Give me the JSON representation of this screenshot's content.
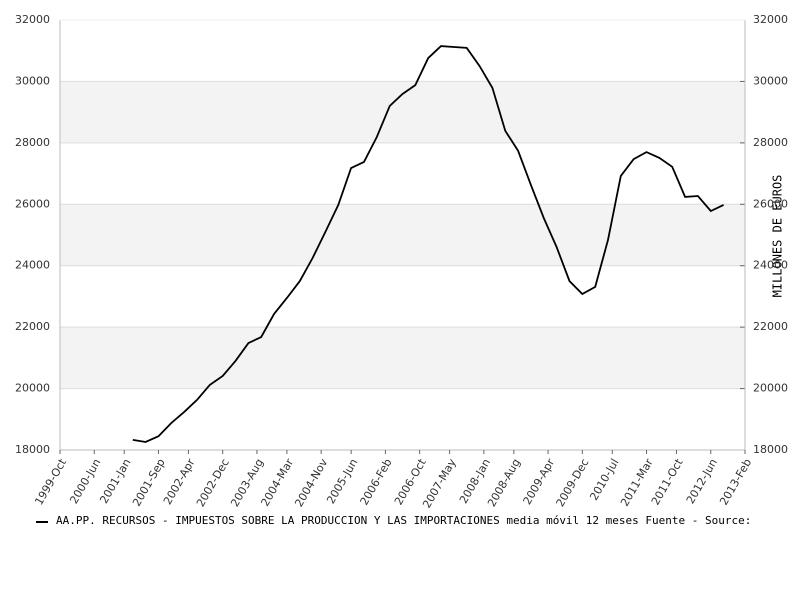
{
  "chart_data": {
    "type": "line",
    "y_axis_label": "MILLONES DE EUROS",
    "legend_text": "AA.PP. RECURSOS - IMPUESTOS SOBRE LA PRODUCCION Y LAS IMPORTACIONES media móvil 12 meses  Fuente - Source:",
    "x": [
      "2001-Mar",
      "2001-Jun",
      "2001-Sep",
      "2001-Dec",
      "2002-Mar",
      "2002-Jun",
      "2002-Sep",
      "2002-Dec",
      "2003-Mar",
      "2003-Jun",
      "2003-Sep",
      "2003-Dec",
      "2004-Mar",
      "2004-Jun",
      "2004-Sep",
      "2004-Dec",
      "2005-Mar",
      "2005-Jun",
      "2005-Sep",
      "2005-Dec",
      "2006-Mar",
      "2006-Jun",
      "2006-Sep",
      "2006-Dec",
      "2007-Mar",
      "2007-Jun",
      "2007-Sep",
      "2007-Dec",
      "2008-Mar",
      "2008-Jun",
      "2008-Sep",
      "2008-Dec",
      "2009-Mar",
      "2009-Jun",
      "2009-Sep",
      "2009-Dec",
      "2010-Mar",
      "2010-Jun",
      "2010-Sep",
      "2010-Dec",
      "2011-Mar",
      "2011-Jun",
      "2011-Sep",
      "2011-Dec",
      "2012-Mar",
      "2012-Jun",
      "2012-Sep"
    ],
    "series": [
      {
        "name": "AA.PP. RECURSOS",
        "color": "#000000",
        "values": [
          18330,
          18260,
          18450,
          18880,
          19240,
          19630,
          20120,
          20410,
          20900,
          21480,
          21680,
          22430,
          22950,
          23500,
          24250,
          25100,
          25980,
          27180,
          27380,
          28190,
          29200,
          29590,
          29880,
          30760,
          31150,
          31120,
          31090,
          30500,
          29790,
          28390,
          27740,
          26630,
          25550,
          24610,
          23500,
          23080,
          23310,
          24840,
          26920,
          27470,
          27700,
          27510,
          27220,
          26240,
          26270,
          25780,
          25980
        ]
      }
    ],
    "xlim": [
      "1999-Oct",
      "2013-Feb"
    ],
    "xticks": [
      "1999-Oct",
      "2000-Jun",
      "2001-Jan",
      "2001-Sep",
      "2002-Apr",
      "2002-Dec",
      "2003-Aug",
      "2004-Mar",
      "2004-Nov",
      "2005-Jun",
      "2006-Feb",
      "2006-Oct",
      "2007-May",
      "2008-Jan",
      "2008-Aug",
      "2009-Apr",
      "2009-Dec",
      "2010-Jul",
      "2011-Mar",
      "2011-Oct",
      "2012-Jun",
      "2013-Feb"
    ],
    "ylim": [
      18000,
      32000
    ],
    "yticks": [
      18000,
      20000,
      22000,
      24000,
      26000,
      28000,
      30000,
      32000
    ],
    "grid": true
  }
}
